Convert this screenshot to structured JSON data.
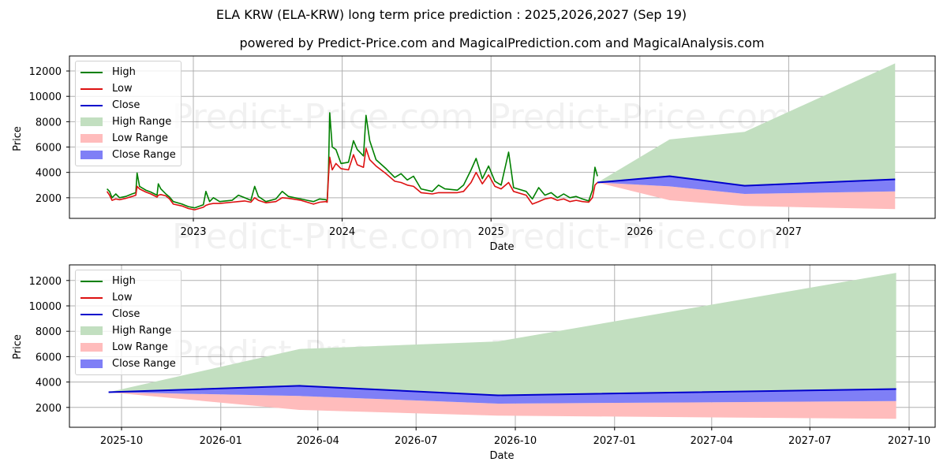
{
  "title": "ELA KRW (ELA-KRW) long term price prediction : 2025,2026,2027 (Sep 19)",
  "subtitle": "powered by Predict-Price.com and MagicalPrediction.com and MagicalAnalysis.com",
  "watermark": "Predict-Price.com",
  "colors": {
    "high": "#008000",
    "low": "#dd1111",
    "close": "#0000cc",
    "high_range": "#c2dfc0",
    "low_range": "#ffbcbc",
    "close_range": "#7f7ff6",
    "grid": "#b0b0b0"
  },
  "legend": [
    {
      "label": "High",
      "kind": "line",
      "color": "#008000"
    },
    {
      "label": "Low",
      "kind": "line",
      "color": "#dd1111"
    },
    {
      "label": "Close",
      "kind": "line",
      "color": "#0000cc"
    },
    {
      "label": "High Range",
      "kind": "patch",
      "color": "#c2dfc0"
    },
    {
      "label": "Low Range",
      "kind": "patch",
      "color": "#ffbcbc"
    },
    {
      "label": "Close Range",
      "kind": "patch",
      "color": "#7f7ff6"
    }
  ],
  "chart_data": [
    {
      "type": "line",
      "title": "ELA KRW (ELA-KRW) long term price prediction : 2025,2026,2027 (Sep 19)",
      "xlabel": "Date",
      "ylabel": "Price",
      "yticks": [
        2000,
        4000,
        6000,
        8000,
        10000,
        12000
      ],
      "xticks": [
        "2023",
        "2024",
        "2025",
        "2026",
        "2027"
      ],
      "grid": true,
      "legend_position": "upper left",
      "history": {
        "columns": [
          "year",
          "high",
          "low"
        ],
        "points": [
          [
            2022.45,
            2700,
            2500
          ],
          [
            2022.47,
            2500,
            2200
          ],
          [
            2022.49,
            2000,
            1800
          ],
          [
            2022.52,
            2300,
            1900
          ],
          [
            2022.55,
            2000,
            1850
          ],
          [
            2022.6,
            2100,
            1950
          ],
          [
            2022.65,
            2300,
            2100
          ],
          [
            2022.68,
            2400,
            2200
          ],
          [
            2022.69,
            3950,
            2900
          ],
          [
            2022.71,
            2900,
            2700
          ],
          [
            2022.76,
            2600,
            2450
          ],
          [
            2022.8,
            2450,
            2300
          ],
          [
            2022.85,
            2200,
            2050
          ],
          [
            2022.86,
            3100,
            2200
          ],
          [
            2022.88,
            2700,
            2250
          ],
          [
            2022.92,
            2300,
            2150
          ],
          [
            2022.95,
            2050,
            1900
          ],
          [
            2022.98,
            1700,
            1500
          ],
          [
            2023.05,
            1500,
            1350
          ],
          [
            2023.1,
            1300,
            1150
          ],
          [
            2023.15,
            1200,
            1050
          ],
          [
            2023.22,
            1450,
            1250
          ],
          [
            2023.24,
            2500,
            1400
          ],
          [
            2023.27,
            1700,
            1500
          ],
          [
            2023.3,
            2000,
            1550
          ],
          [
            2023.35,
            1700,
            1550
          ],
          [
            2023.45,
            1800,
            1650
          ],
          [
            2023.5,
            2200,
            1700
          ],
          [
            2023.55,
            2000,
            1750
          ],
          [
            2023.6,
            1800,
            1650
          ],
          [
            2023.63,
            2900,
            2000
          ],
          [
            2023.66,
            2100,
            1800
          ],
          [
            2023.72,
            1700,
            1600
          ],
          [
            2023.8,
            1900,
            1700
          ],
          [
            2023.85,
            2500,
            2000
          ],
          [
            2023.9,
            2100,
            1950
          ],
          [
            2024.0,
            1900,
            1800
          ],
          [
            2024.05,
            1800,
            1650
          ],
          [
            2024.1,
            1700,
            1500
          ],
          [
            2024.15,
            1900,
            1650
          ],
          [
            2024.2,
            1850,
            1700
          ],
          [
            2024.21,
            1750,
            1650
          ],
          [
            2024.22,
            4000,
            3600
          ],
          [
            2024.23,
            8700,
            5200
          ],
          [
            2024.25,
            6000,
            4200
          ],
          [
            2024.28,
            5800,
            4700
          ],
          [
            2024.32,
            4700,
            4300
          ],
          [
            2024.38,
            4800,
            4200
          ],
          [
            2024.42,
            6500,
            5400
          ],
          [
            2024.45,
            5800,
            4600
          ],
          [
            2024.5,
            5300,
            4400
          ],
          [
            2024.52,
            8500,
            5900
          ],
          [
            2024.55,
            6500,
            5000
          ],
          [
            2024.6,
            5000,
            4500
          ],
          [
            2024.68,
            4300,
            3900
          ],
          [
            2024.75,
            3600,
            3300
          ],
          [
            2024.8,
            3900,
            3200
          ],
          [
            2024.85,
            3400,
            3000
          ],
          [
            2024.9,
            3700,
            2900
          ],
          [
            2024.96,
            2700,
            2400
          ],
          [
            2025.05,
            2500,
            2300
          ],
          [
            2025.1,
            3000,
            2400
          ],
          [
            2025.15,
            2700,
            2400
          ],
          [
            2025.25,
            2600,
            2400
          ],
          [
            2025.3,
            3000,
            2500
          ],
          [
            2025.36,
            4200,
            3200
          ],
          [
            2025.4,
            5100,
            4000
          ],
          [
            2025.45,
            3500,
            3100
          ],
          [
            2025.5,
            4500,
            3800
          ],
          [
            2025.55,
            3300,
            2900
          ],
          [
            2025.6,
            3000,
            2700
          ],
          [
            2025.66,
            5600,
            3200
          ],
          [
            2025.7,
            2800,
            2500
          ],
          [
            2025.8,
            2500,
            2200
          ],
          [
            2025.85,
            1900,
            1500
          ],
          [
            2025.9,
            2800,
            1700
          ],
          [
            2025.95,
            2200,
            1900
          ],
          [
            2026.0,
            2400,
            2000
          ],
          [
            2026.05,
            2000,
            1800
          ],
          [
            2026.1,
            2300,
            1900
          ],
          [
            2026.15,
            2000,
            1700
          ],
          [
            2026.2,
            2100,
            1800
          ],
          [
            2026.25,
            1900,
            1700
          ],
          [
            2026.3,
            1750,
            1650
          ],
          [
            2026.33,
            2600,
            2000
          ],
          [
            2026.35,
            4400,
            3000
          ],
          [
            2026.37,
            3700,
            3200
          ]
        ]
      },
      "history_note": "approximate; historical series spans mid-2022 through Sep 2025 (x axis uses same scale as forecast)",
      "forecast": {
        "dates": [
          "2025-09-19",
          "2026-03-15",
          "2026-09-15",
          "2027-09-19"
        ],
        "high_upper": [
          3200,
          6600,
          7200,
          12600
        ],
        "close": [
          3200,
          3700,
          2950,
          3450
        ],
        "close_lower": [
          3200,
          2900,
          2300,
          2500
        ],
        "low_lower": [
          3200,
          1800,
          1350,
          1100
        ]
      }
    },
    {
      "type": "area",
      "title": "",
      "xlabel": "Date",
      "ylabel": "Price",
      "yticks": [
        2000,
        4000,
        6000,
        8000,
        10000,
        12000
      ],
      "xticks": [
        "2025-10",
        "2026-01",
        "2026-04",
        "2026-07",
        "2026-10",
        "2027-01",
        "2027-04",
        "2027-07",
        "2027-10"
      ],
      "grid": true,
      "legend_position": "upper left",
      "forecast": {
        "dates": [
          "2025-09-19",
          "2026-03-15",
          "2026-09-15",
          "2027-09-19"
        ],
        "high_upper": [
          3200,
          6600,
          7200,
          12600
        ],
        "close": [
          3200,
          3700,
          2950,
          3450
        ],
        "close_lower": [
          3200,
          2900,
          2300,
          2500
        ],
        "low_lower": [
          3200,
          1800,
          1350,
          1100
        ]
      }
    }
  ],
  "axes": {
    "top": {
      "ylabel": "Price",
      "xlabel": "Date",
      "yticks": [
        "2000",
        "4000",
        "6000",
        "8000",
        "10000",
        "12000"
      ],
      "xticks": [
        "2023",
        "2024",
        "2025",
        "2026",
        "2027"
      ]
    },
    "bottom": {
      "ylabel": "Price",
      "xlabel": "Date",
      "yticks": [
        "2000",
        "4000",
        "6000",
        "8000",
        "10000",
        "12000"
      ],
      "xticks": [
        "2025-10",
        "2026-01",
        "2026-04",
        "2026-07",
        "2026-10",
        "2027-01",
        "2027-04",
        "2027-07",
        "2027-10"
      ]
    }
  }
}
